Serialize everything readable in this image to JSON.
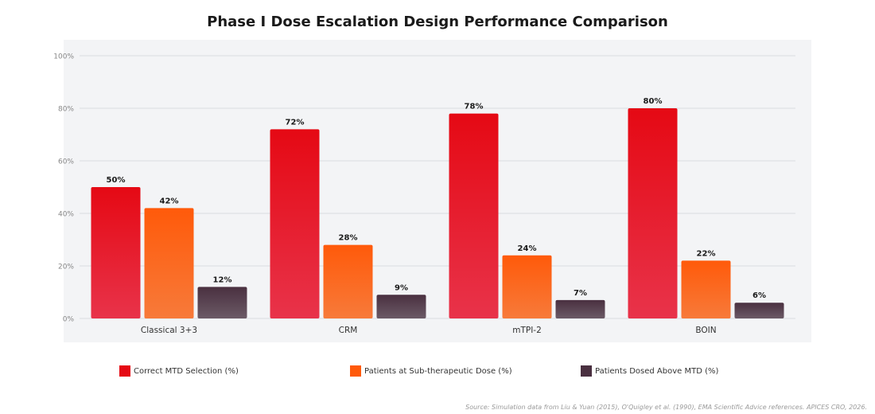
{
  "chart_data": {
    "type": "bar",
    "title": "Phase I Dose Escalation Design Performance Comparison",
    "categories": [
      "Classical 3+3",
      "CRM",
      "mTPI-2",
      "BOIN"
    ],
    "series": [
      {
        "name": "Correct MTD Selection (%)",
        "values": [
          50,
          72,
          78,
          80
        ],
        "color_top": "#e50914",
        "color_bottom": "#e8334a"
      },
      {
        "name": "Patients at Sub-therapeutic Dose (%)",
        "values": [
          42,
          28,
          24,
          22
        ],
        "color_top": "#ff5a0a",
        "color_bottom": "#f77a3a"
      },
      {
        "name": "Patients Dosed Above MTD (%)",
        "values": [
          12,
          9,
          7,
          6
        ],
        "color_top": "#4a3040",
        "color_bottom": "#6b5a66"
      }
    ],
    "yticks": [
      "0%",
      "20%",
      "40%",
      "60%",
      "80%",
      "100%"
    ],
    "ylim": [
      0,
      100
    ],
    "value_suffix": "%",
    "grid": true,
    "legend_position": "bottom"
  },
  "source_note": "Source: Simulation data from Liu & Yuan (2015), O'Quigley et al. (1990), EMA Scientific Advice references. APICES CRO, 2026."
}
